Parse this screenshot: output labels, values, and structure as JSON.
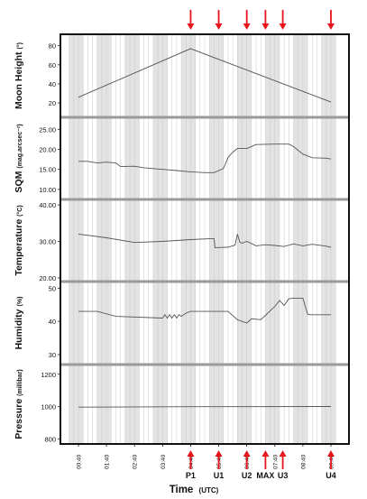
{
  "chart_data": {
    "type": "line",
    "xlabel": "Time",
    "xlabel_unit": "(UTC)",
    "x_ticks": [
      "00:40",
      "01:40",
      "02:40",
      "03:40",
      "04:40",
      "05:40",
      "06:40",
      "07:40",
      "08:40",
      "09:40"
    ],
    "x_range": [
      "00:40",
      "09:40"
    ],
    "grid": true,
    "panels": [
      {
        "ylabel": "Moon Height",
        "unit": "(°)",
        "yticks": [
          "80",
          "60",
          "40",
          "20"
        ],
        "ylim": [
          5,
          92
        ],
        "x": [
          "00:40",
          "04:40",
          "09:40"
        ],
        "values": [
          26,
          77,
          21
        ]
      },
      {
        "ylabel": "SQM",
        "unit": "(mag.arcsec⁻²)",
        "yticks": [
          "25.00",
          "20.00",
          "15.00",
          "10.00"
        ],
        "ylim": [
          7.5,
          28
        ],
        "x": [
          "00:40",
          "01:00",
          "01:20",
          "01:40",
          "02:00",
          "02:10",
          "02:40",
          "03:00",
          "03:40",
          "04:10",
          "04:40",
          "05:10",
          "05:30",
          "05:40",
          "05:50",
          "05:55",
          "06:00",
          "06:10",
          "06:20",
          "06:40",
          "07:00",
          "07:40",
          "08:10",
          "08:20",
          "08:40",
          "09:00",
          "09:30",
          "09:40"
        ],
        "values": [
          17.0,
          17.0,
          16.6,
          16.8,
          16.6,
          15.7,
          15.8,
          15.4,
          15.0,
          14.7,
          14.4,
          14.2,
          14.2,
          14.7,
          15.2,
          16.5,
          18.0,
          19.3,
          20.2,
          20.2,
          21.2,
          21.3,
          21.3,
          20.7,
          18.8,
          17.9,
          17.8,
          17.6
        ]
      },
      {
        "ylabel": "Temperature",
        "unit": "(°C)",
        "yticks": [
          "40.00",
          "30.00",
          "20.00"
        ],
        "ylim": [
          19,
          41.5
        ],
        "x": [
          "00:40",
          "01:40",
          "02:40",
          "03:40",
          "04:40",
          "05:30",
          "05:32",
          "06:00",
          "06:15",
          "06:20",
          "06:25",
          "06:30",
          "06:40",
          "07:00",
          "07:20",
          "07:40",
          "08:00",
          "08:20",
          "08:40",
          "09:00",
          "09:30",
          "09:40"
        ],
        "values": [
          32.0,
          31.0,
          29.7,
          30.0,
          30.5,
          30.8,
          28.3,
          28.4,
          29.0,
          32.0,
          29.8,
          29.5,
          30.0,
          28.8,
          29.1,
          28.9,
          28.6,
          29.3,
          28.8,
          29.2,
          28.7,
          28.4
        ]
      },
      {
        "ylabel": "Humidity",
        "unit": "(%)",
        "yticks": [
          "50",
          "40",
          "30"
        ],
        "ylim": [
          27,
          52
        ],
        "x": [
          "00:40",
          "01:20",
          "02:00",
          "03:40",
          "03:45",
          "03:50",
          "03:55",
          "04:00",
          "04:05",
          "04:10",
          "04:15",
          "04:20",
          "04:30",
          "04:40",
          "05:40",
          "06:00",
          "06:20",
          "06:40",
          "06:50",
          "07:10",
          "07:20",
          "07:30",
          "07:40",
          "07:50",
          "08:00",
          "08:10",
          "08:20",
          "08:40",
          "08:50",
          "08:55",
          "09:00",
          "09:20",
          "09:40"
        ],
        "values": [
          43.0,
          43.0,
          41.5,
          41.0,
          42.0,
          41.0,
          42.0,
          41.0,
          42.0,
          41.0,
          42.0,
          41.5,
          42.5,
          43.0,
          43.0,
          43.0,
          40.5,
          39.5,
          40.8,
          40.5,
          41.8,
          43.2,
          44.5,
          46.3,
          44.8,
          46.8,
          47.0,
          47.0,
          42.2,
          42.0,
          42.0,
          42.0,
          42.0
        ]
      },
      {
        "ylabel": "Pressure",
        "unit": "(millibar)",
        "yticks": [
          "1200",
          "1000",
          "800"
        ],
        "ylim": [
          770,
          1260
        ],
        "x": [
          "00:40",
          "04:40",
          "09:40"
        ],
        "values": [
          997,
          1000,
          1001
        ]
      }
    ],
    "events": [
      {
        "label": "P1",
        "time": "04:40"
      },
      {
        "label": "U1",
        "time": "05:40"
      },
      {
        "label": "U2",
        "time": "06:40"
      },
      {
        "label": "MAX",
        "time": "07:20"
      },
      {
        "label": "U3",
        "time": "07:57"
      },
      {
        "label": "U4",
        "time": "09:40"
      }
    ],
    "colors": {
      "series": "#555555",
      "arrow": "#e8141b",
      "band": "#e3e3e3",
      "frame": "#111111",
      "separator": "#9a9a9a"
    }
  }
}
